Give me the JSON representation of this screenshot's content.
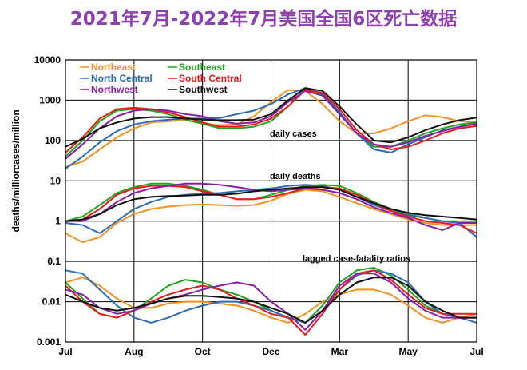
{
  "title": "2021年7月-2022年7月美国全国6区死亡数据",
  "colors": {
    "title": "#8e3fb1",
    "Northeast": "#f39220",
    "Southeast": "#1ea51e",
    "North Central": "#2a6cb5",
    "South Central": "#e81c1c",
    "Northwest": "#8b1fa8",
    "Southwest": "#111111"
  },
  "chart_data": {
    "type": "line",
    "y_scale": "log",
    "ylim": [
      0.001,
      10000
    ],
    "y_ticks": [
      {
        "value": 10000,
        "label": "10000"
      },
      {
        "value": 1000,
        "label": "1000"
      },
      {
        "value": 100,
        "label": "100"
      },
      {
        "value": 10,
        "label": "10"
      },
      {
        "value": 1,
        "label": "1"
      },
      {
        "value": 0.1,
        "label": "0.1"
      },
      {
        "value": 0.01,
        "label": "0.01"
      },
      {
        "value": 0.001,
        "label": "0.001"
      }
    ],
    "x_ticks": [
      "Jul",
      "Aug",
      "Oct",
      "Dec",
      "Mar",
      "May",
      "Jul"
    ],
    "x_tick_positions": [
      0,
      2,
      4,
      6,
      8,
      10,
      12
    ],
    "ylabels": [
      "cases/million",
      "deaths/million"
    ],
    "annotations": [
      "daily cases",
      "daily deaths",
      "lagged case-fatality ratios"
    ],
    "legend_position": "top-left",
    "grid": true,
    "x": [
      0,
      0.5,
      1,
      1.5,
      2,
      2.5,
      3,
      3.5,
      4,
      4.5,
      5,
      5.5,
      6,
      6.5,
      7,
      7.5,
      8,
      8.5,
      9,
      9.5,
      10,
      10.5,
      11,
      11.5,
      12
    ],
    "panels": [
      {
        "annotation": "daily cases",
        "series": [
          {
            "name": "Northeast",
            "values": [
              22,
              30,
              60,
              120,
              200,
              280,
              300,
              320,
              260,
              240,
              250,
              400,
              900,
              1800,
              1700,
              800,
              300,
              150,
              150,
              200,
              300,
              420,
              380,
              300,
              280
            ]
          },
          {
            "name": "Southeast",
            "values": [
              40,
              100,
              300,
              550,
              600,
              550,
              450,
              330,
              260,
              200,
              200,
              220,
              300,
              700,
              1900,
              1500,
              500,
              150,
              70,
              70,
              100,
              150,
              200,
              250,
              280
            ]
          },
          {
            "name": "North Central",
            "values": [
              20,
              40,
              90,
              170,
              250,
              300,
              330,
              350,
              350,
              360,
              450,
              550,
              800,
              1400,
              2000,
              1400,
              500,
              150,
              60,
              50,
              80,
              120,
              180,
              220,
              260
            ]
          },
          {
            "name": "South Central",
            "values": [
              50,
              120,
              350,
              600,
              650,
              600,
              500,
              380,
              280,
              220,
              220,
              250,
              350,
              700,
              1800,
              1500,
              600,
              180,
              80,
              60,
              70,
              100,
              150,
              200,
              230
            ]
          },
          {
            "name": "Northwest",
            "values": [
              35,
              80,
              200,
              400,
              550,
              600,
              550,
              450,
              400,
              300,
              260,
              280,
              400,
              900,
              1700,
              1300,
              450,
              150,
              80,
              70,
              90,
              130,
              170,
              220,
              260
            ]
          },
          {
            "name": "Southwest",
            "values": [
              70,
              110,
              200,
              280,
              350,
              380,
              380,
              350,
              330,
              320,
              320,
              330,
              450,
              1000,
              2000,
              1700,
              700,
              250,
              100,
              90,
              120,
              180,
              250,
              320,
              370
            ]
          }
        ]
      },
      {
        "annotation": "daily deaths",
        "series": [
          {
            "name": "Northeast",
            "values": [
              0.5,
              0.3,
              0.4,
              0.9,
              1.5,
              2.0,
              2.3,
              2.5,
              2.6,
              2.5,
              2.4,
              2.5,
              3.2,
              4.8,
              6.0,
              5.5,
              4.0,
              2.8,
              2.0,
              1.5,
              1.1,
              0.9,
              0.8,
              0.8,
              0.8
            ]
          },
          {
            "name": "Southeast",
            "values": [
              1.0,
              1.3,
              2.5,
              5.0,
              7.0,
              8.5,
              8.5,
              7.5,
              6.0,
              4.5,
              3.5,
              3.5,
              4.5,
              6.0,
              7.5,
              8.0,
              7.5,
              5.0,
              3.0,
              2.0,
              1.5,
              1.2,
              1.0,
              1.0,
              1.0
            ]
          },
          {
            "name": "North Central",
            "values": [
              0.9,
              0.8,
              0.5,
              1.0,
              2.0,
              3.0,
              4.0,
              4.5,
              4.8,
              5.0,
              5.5,
              6.0,
              6.5,
              7.5,
              8.0,
              7.5,
              6.0,
              4.0,
              2.5,
              1.8,
              1.4,
              1.2,
              1.0,
              0.9,
              0.4
            ]
          },
          {
            "name": "South Central",
            "values": [
              1.0,
              1.1,
              2.0,
              4.5,
              6.5,
              7.5,
              7.5,
              7.0,
              5.5,
              4.5,
              3.5,
              3.5,
              4.0,
              5.0,
              6.5,
              7.0,
              6.5,
              4.5,
              2.8,
              1.8,
              1.3,
              1.0,
              0.9,
              0.8,
              0.5
            ]
          },
          {
            "name": "Northwest",
            "values": [
              1.0,
              1.0,
              1.5,
              3.0,
              5.0,
              6.5,
              7.5,
              8.5,
              8.5,
              8.0,
              7.0,
              6.0,
              5.5,
              6.0,
              6.5,
              6.0,
              5.0,
              3.5,
              2.2,
              1.6,
              1.2,
              0.8,
              0.6,
              0.9,
              0.9
            ]
          },
          {
            "name": "Southwest",
            "values": [
              1.0,
              1.1,
              1.5,
              2.5,
              3.5,
              4.0,
              4.2,
              4.3,
              4.5,
              4.5,
              4.8,
              5.5,
              6.0,
              6.5,
              7.0,
              7.0,
              6.0,
              4.0,
              2.8,
              2.0,
              1.6,
              1.4,
              1.3,
              1.2,
              1.1
            ]
          }
        ]
      },
      {
        "annotation": "lagged case-fatality ratios",
        "series": [
          {
            "name": "Northeast",
            "values": [
              0.03,
              0.04,
              0.025,
              0.012,
              0.007,
              0.007,
              0.009,
              0.01,
              0.01,
              0.009,
              0.008,
              0.006,
              0.004,
              0.003,
              0.005,
              0.01,
              0.015,
              0.02,
              0.02,
              0.015,
              0.008,
              0.004,
              0.003,
              0.004,
              0.005
            ]
          },
          {
            "name": "Southeast",
            "values": [
              0.03,
              0.012,
              0.005,
              0.004,
              0.006,
              0.012,
              0.025,
              0.035,
              0.03,
              0.02,
              0.015,
              0.01,
              0.006,
              0.004,
              0.003,
              0.008,
              0.03,
              0.06,
              0.07,
              0.045,
              0.02,
              0.008,
              0.005,
              0.004,
              0.004
            ]
          },
          {
            "name": "North Central",
            "values": [
              0.06,
              0.05,
              0.02,
              0.008,
              0.004,
              0.003,
              0.004,
              0.006,
              0.008,
              0.01,
              0.01,
              0.008,
              0.006,
              0.004,
              0.003,
              0.006,
              0.02,
              0.045,
              0.06,
              0.05,
              0.03,
              0.01,
              0.005,
              0.004,
              0.003
            ]
          },
          {
            "name": "South Central",
            "values": [
              0.025,
              0.01,
              0.005,
              0.004,
              0.006,
              0.01,
              0.015,
              0.02,
              0.025,
              0.02,
              0.012,
              0.008,
              0.005,
              0.004,
              0.0015,
              0.005,
              0.02,
              0.05,
              0.06,
              0.035,
              0.015,
              0.007,
              0.005,
              0.005,
              0.005
            ]
          },
          {
            "name": "Northwest",
            "values": [
              0.02,
              0.015,
              0.007,
              0.005,
              0.006,
              0.009,
              0.012,
              0.015,
              0.02,
              0.025,
              0.03,
              0.025,
              0.01,
              0.005,
              0.002,
              0.006,
              0.025,
              0.05,
              0.05,
              0.03,
              0.012,
              0.006,
              0.004,
              0.004,
              0.004
            ]
          },
          {
            "name": "Southwest",
            "values": [
              0.015,
              0.01,
              0.007,
              0.006,
              0.007,
              0.009,
              0.012,
              0.014,
              0.014,
              0.013,
              0.012,
              0.01,
              0.007,
              0.005,
              0.003,
              0.006,
              0.015,
              0.03,
              0.04,
              0.04,
              0.025,
              0.01,
              0.006,
              0.004,
              0.004
            ]
          }
        ]
      }
    ]
  }
}
